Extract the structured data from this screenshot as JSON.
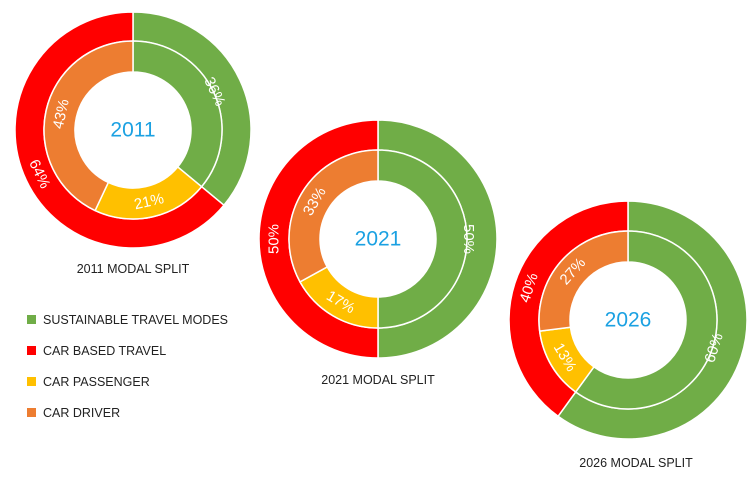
{
  "colors": {
    "sustainable": "#70ad47",
    "car_based": "#ff0000",
    "car_passenger": "#ffc000",
    "car_driver": "#ed7d31",
    "year_text": "#1ba1e2"
  },
  "legend": [
    {
      "label": "SUSTAINABLE TRAVEL MODES",
      "color": "#70ad47"
    },
    {
      "label": "CAR BASED TRAVEL",
      "color": "#ff0000"
    },
    {
      "label": "CAR PASSENGER",
      "color": "#ffc000"
    },
    {
      "label": "CAR DRIVER",
      "color": "#ed7d31"
    }
  ],
  "chart_data": [
    {
      "type": "pie",
      "title": "2011 MODAL SPLIT",
      "center_label": "2011",
      "outer": [
        {
          "name": "SUSTAINABLE TRAVEL MODES",
          "value": 36,
          "label": "36%"
        },
        {
          "name": "CAR BASED TRAVEL",
          "value": 64,
          "label": "64%"
        }
      ],
      "inner": [
        {
          "name": "SUSTAINABLE TRAVEL MODES",
          "value": 36,
          "label": "36%"
        },
        {
          "name": "CAR PASSENGER",
          "value": 21,
          "label": "21%"
        },
        {
          "name": "CAR DRIVER",
          "value": 43,
          "label": "43%"
        }
      ]
    },
    {
      "type": "pie",
      "title": "2021 MODAL SPLIT",
      "center_label": "2021",
      "outer": [
        {
          "name": "SUSTAINABLE TRAVEL MODES",
          "value": 50,
          "label": "50%"
        },
        {
          "name": "CAR BASED TRAVEL",
          "value": 50,
          "label": "50%"
        }
      ],
      "inner": [
        {
          "name": "SUSTAINABLE TRAVEL MODES",
          "value": 50,
          "label": "50%"
        },
        {
          "name": "CAR PASSENGER",
          "value": 17,
          "label": "17%"
        },
        {
          "name": "CAR DRIVER",
          "value": 33,
          "label": "33%"
        }
      ]
    },
    {
      "type": "pie",
      "title": "2026 MODAL SPLIT",
      "center_label": "2026",
      "outer": [
        {
          "name": "SUSTAINABLE TRAVEL MODES",
          "value": 60,
          "label": "60%"
        },
        {
          "name": "CAR BASED TRAVEL",
          "value": 40,
          "label": "40%"
        }
      ],
      "inner": [
        {
          "name": "SUSTAINABLE TRAVEL MODES",
          "value": 60,
          "label": "60%"
        },
        {
          "name": "CAR PASSENGER",
          "value": 13,
          "label": "13%"
        },
        {
          "name": "CAR DRIVER",
          "value": 27,
          "label": "27%"
        }
      ]
    }
  ]
}
